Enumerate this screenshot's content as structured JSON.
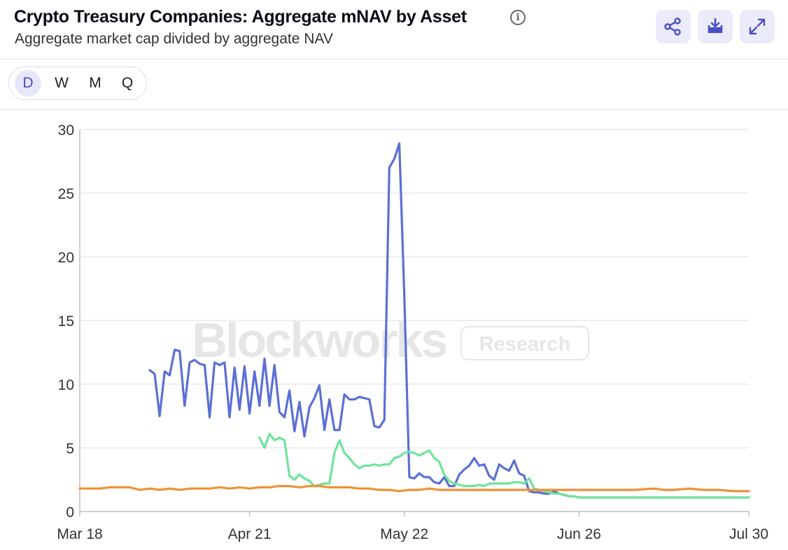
{
  "header": {
    "title": "Crypto Treasury Companies: Aggregate mNAV by Asset",
    "subtitle": "Aggregate market cap divided by aggregate NAV",
    "info_icon": "i"
  },
  "toolbar": {
    "share_icon": "share-icon",
    "download_icon": "download-icon",
    "expand_icon": "expand-icon",
    "accent_color": "#4a4fc7"
  },
  "periods": {
    "items": [
      "D",
      "W",
      "M",
      "Q"
    ],
    "selected": "D"
  },
  "watermark": {
    "brand": "Blockworks",
    "tag": "Research"
  },
  "chart_data": {
    "type": "line",
    "title": "",
    "xlabel": "",
    "ylabel": "",
    "x_range": [
      "Mar 18",
      "Jul 30"
    ],
    "x_ticks": [
      "Mar 18",
      "Apr 21",
      "May 22",
      "Jun 26",
      "Jul 30"
    ],
    "ylim": [
      0,
      30
    ],
    "y_ticks": [
      0,
      5,
      10,
      15,
      20,
      25,
      30
    ],
    "grid": true,
    "legend": "none",
    "series": [
      {
        "color": "#5b6fd6",
        "points": [
          [
            "Apr 01",
            11.1
          ],
          [
            "Apr 02",
            10.8
          ],
          [
            "Apr 03",
            7.5
          ],
          [
            "Apr 04",
            11.0
          ],
          [
            "Apr 05",
            10.7
          ],
          [
            "Apr 06",
            12.7
          ],
          [
            "Apr 07",
            12.6
          ],
          [
            "Apr 08",
            8.3
          ],
          [
            "Apr 09",
            11.7
          ],
          [
            "Apr 10",
            11.9
          ],
          [
            "Apr 11",
            11.6
          ],
          [
            "Apr 12",
            11.5
          ],
          [
            "Apr 13",
            7.4
          ],
          [
            "Apr 14",
            11.7
          ],
          [
            "Apr 15",
            11.5
          ],
          [
            "Apr 16",
            11.7
          ],
          [
            "Apr 17",
            7.4
          ],
          [
            "Apr 18",
            11.3
          ],
          [
            "Apr 19",
            8.0
          ],
          [
            "Apr 20",
            11.4
          ],
          [
            "Apr 21",
            7.7
          ],
          [
            "Apr 22",
            11.0
          ],
          [
            "Apr 23",
            8.3
          ],
          [
            "Apr 24",
            12.0
          ],
          [
            "Apr 25",
            8.3
          ],
          [
            "Apr 26",
            11.5
          ],
          [
            "Apr 27",
            7.8
          ],
          [
            "Apr 28",
            7.4
          ],
          [
            "Apr 29",
            9.5
          ],
          [
            "Apr 30",
            6.3
          ],
          [
            "May 01",
            8.6
          ],
          [
            "May 02",
            5.9
          ],
          [
            "May 03",
            8.2
          ],
          [
            "May 04",
            8.9
          ],
          [
            "May 05",
            9.9
          ],
          [
            "May 06",
            6.4
          ],
          [
            "May 07",
            8.8
          ],
          [
            "May 08",
            6.4
          ],
          [
            "May 09",
            6.4
          ],
          [
            "May 10",
            9.2
          ],
          [
            "May 11",
            8.8
          ],
          [
            "May 12",
            8.8
          ],
          [
            "May 13",
            9.0
          ],
          [
            "May 14",
            8.9
          ],
          [
            "May 15",
            8.8
          ],
          [
            "May 16",
            6.7
          ],
          [
            "May 17",
            6.6
          ],
          [
            "May 18",
            7.2
          ],
          [
            "May 19",
            27.0
          ],
          [
            "May 20",
            27.7
          ],
          [
            "May 21",
            28.9
          ],
          [
            "May 22",
            17.0
          ],
          [
            "May 23",
            2.7
          ],
          [
            "May 24",
            2.6
          ],
          [
            "May 25",
            3.0
          ],
          [
            "May 26",
            2.7
          ],
          [
            "May 27",
            2.7
          ],
          [
            "May 28",
            2.3
          ],
          [
            "May 29",
            2.2
          ],
          [
            "May 30",
            2.7
          ],
          [
            "May 31",
            2.0
          ],
          [
            "Jun 01",
            2.0
          ],
          [
            "Jun 02",
            2.9
          ],
          [
            "Jun 03",
            3.3
          ],
          [
            "Jun 04",
            3.6
          ],
          [
            "Jun 05",
            4.2
          ],
          [
            "Jun 06",
            3.6
          ],
          [
            "Jun 07",
            3.7
          ],
          [
            "Jun 08",
            2.8
          ],
          [
            "Jun 09",
            2.5
          ],
          [
            "Jun 10",
            3.7
          ],
          [
            "Jun 11",
            3.4
          ],
          [
            "Jun 12",
            3.2
          ],
          [
            "Jun 13",
            4.0
          ],
          [
            "Jun 14",
            3.0
          ],
          [
            "Jun 15",
            2.8
          ],
          [
            "Jun 16",
            1.6
          ],
          [
            "Jun 17",
            1.5
          ],
          [
            "Jun 18",
            1.5
          ],
          [
            "Jun 19",
            1.4
          ],
          [
            "Jun 20",
            1.4
          ],
          [
            "Jun 21",
            1.6
          ],
          [
            "Jun 22",
            1.4
          ],
          [
            "Jun 23",
            1.3
          ],
          [
            "Jun 24",
            1.2
          ],
          [
            "Jun 25",
            1.2
          ],
          [
            "Jun 26",
            1.1
          ],
          [
            "Jul 30",
            1.1
          ]
        ]
      },
      {
        "color": "#6fe49a",
        "points": [
          [
            "Apr 23",
            5.8
          ],
          [
            "Apr 24",
            5.0
          ],
          [
            "Apr 25",
            6.1
          ],
          [
            "Apr 26",
            5.6
          ],
          [
            "Apr 27",
            5.8
          ],
          [
            "Apr 28",
            5.6
          ],
          [
            "Apr 29",
            2.8
          ],
          [
            "Apr 30",
            2.5
          ],
          [
            "May 01",
            2.9
          ],
          [
            "May 02",
            2.6
          ],
          [
            "May 03",
            2.4
          ],
          [
            "May 04",
            2.0
          ],
          [
            "May 05",
            2.1
          ],
          [
            "May 06",
            2.2
          ],
          [
            "May 07",
            2.2
          ],
          [
            "May 08",
            4.6
          ],
          [
            "May 09",
            5.6
          ],
          [
            "May 10",
            4.6
          ],
          [
            "May 11",
            4.2
          ],
          [
            "May 12",
            3.7
          ],
          [
            "May 13",
            3.4
          ],
          [
            "May 14",
            3.6
          ],
          [
            "May 15",
            3.6
          ],
          [
            "May 16",
            3.7
          ],
          [
            "May 17",
            3.6
          ],
          [
            "May 18",
            3.7
          ],
          [
            "May 19",
            3.7
          ],
          [
            "May 20",
            4.2
          ],
          [
            "May 21",
            4.3
          ],
          [
            "May 22",
            4.6
          ],
          [
            "May 23",
            4.7
          ],
          [
            "May 24",
            4.6
          ],
          [
            "May 25",
            4.4
          ],
          [
            "May 26",
            4.6
          ],
          [
            "May 27",
            4.8
          ],
          [
            "May 28",
            4.2
          ],
          [
            "May 29",
            3.9
          ],
          [
            "May 30",
            2.9
          ],
          [
            "May 31",
            2.4
          ],
          [
            "Jun 01",
            2.2
          ],
          [
            "Jun 02",
            2.1
          ],
          [
            "Jun 03",
            2.0
          ],
          [
            "Jun 04",
            2.0
          ],
          [
            "Jun 05",
            2.0
          ],
          [
            "Jun 06",
            2.1
          ],
          [
            "Jun 07",
            2.0
          ],
          [
            "Jun 08",
            2.2
          ],
          [
            "Jun 09",
            2.2
          ],
          [
            "Jun 10",
            2.2
          ],
          [
            "Jun 11",
            2.2
          ],
          [
            "Jun 12",
            2.2
          ],
          [
            "Jun 13",
            2.3
          ],
          [
            "Jun 14",
            2.3
          ],
          [
            "Jun 15",
            2.2
          ],
          [
            "Jun 16",
            2.6
          ],
          [
            "Jun 17",
            1.8
          ],
          [
            "Jun 18",
            1.7
          ],
          [
            "Jun 19",
            1.6
          ],
          [
            "Jun 20",
            1.5
          ],
          [
            "Jun 21",
            1.4
          ],
          [
            "Jun 22",
            1.4
          ],
          [
            "Jun 23",
            1.3
          ],
          [
            "Jun 24",
            1.2
          ],
          [
            "Jun 25",
            1.2
          ],
          [
            "Jun 26",
            1.1
          ],
          [
            "Jul 30",
            1.1
          ]
        ]
      },
      {
        "color": "#ef9135",
        "points": [
          [
            "Mar 18",
            1.8
          ],
          [
            "Mar 20",
            1.8
          ],
          [
            "Mar 22",
            1.8
          ],
          [
            "Mar 24",
            1.9
          ],
          [
            "Mar 26",
            1.9
          ],
          [
            "Mar 28",
            1.9
          ],
          [
            "Mar 30",
            1.7
          ],
          [
            "Apr 01",
            1.8
          ],
          [
            "Apr 03",
            1.7
          ],
          [
            "Apr 05",
            1.8
          ],
          [
            "Apr 07",
            1.7
          ],
          [
            "Apr 09",
            1.8
          ],
          [
            "Apr 11",
            1.8
          ],
          [
            "Apr 13",
            1.8
          ],
          [
            "Apr 15",
            1.9
          ],
          [
            "Apr 17",
            1.8
          ],
          [
            "Apr 19",
            1.9
          ],
          [
            "Apr 21",
            1.8
          ],
          [
            "Apr 23",
            1.9
          ],
          [
            "Apr 25",
            1.9
          ],
          [
            "Apr 27",
            2.0
          ],
          [
            "Apr 29",
            2.0
          ],
          [
            "May 01",
            1.9
          ],
          [
            "May 03",
            2.0
          ],
          [
            "May 05",
            2.0
          ],
          [
            "May 07",
            1.9
          ],
          [
            "May 09",
            1.9
          ],
          [
            "May 11",
            1.9
          ],
          [
            "May 13",
            1.8
          ],
          [
            "May 15",
            1.8
          ],
          [
            "May 17",
            1.7
          ],
          [
            "May 19",
            1.7
          ],
          [
            "May 21",
            1.6
          ],
          [
            "May 23",
            1.7
          ],
          [
            "May 25",
            1.7
          ],
          [
            "May 27",
            1.8
          ],
          [
            "May 29",
            1.7
          ],
          [
            "Jun 01",
            1.7
          ],
          [
            "Jun 05",
            1.7
          ],
          [
            "Jun 09",
            1.7
          ],
          [
            "Jun 13",
            1.7
          ],
          [
            "Jun 17",
            1.7
          ],
          [
            "Jun 21",
            1.7
          ],
          [
            "Jun 25",
            1.7
          ],
          [
            "Jun 29",
            1.7
          ],
          [
            "Jul 03",
            1.7
          ],
          [
            "Jul 07",
            1.7
          ],
          [
            "Jul 11",
            1.8
          ],
          [
            "Jul 13",
            1.7
          ],
          [
            "Jul 15",
            1.7
          ],
          [
            "Jul 18",
            1.8
          ],
          [
            "Jul 21",
            1.7
          ],
          [
            "Jul 24",
            1.7
          ],
          [
            "Jul 27",
            1.6
          ],
          [
            "Jul 30",
            1.6
          ]
        ]
      }
    ]
  }
}
